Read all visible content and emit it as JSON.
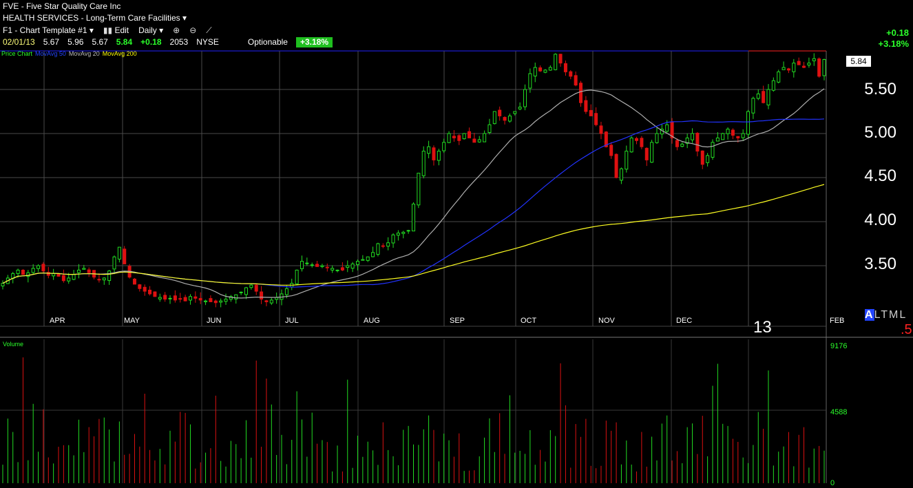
{
  "header": {
    "ticker": "FVE",
    "company": "Five Star Quality Care Inc",
    "sector": "HEALTH SERVICES - Long-Term Care Facilities",
    "template": "F1 - Chart Template #1",
    "edit": "Edit",
    "period": "Daily",
    "quote": {
      "date": "02/01/13",
      "open": "5.67",
      "high": "5.96",
      "low": "5.67",
      "last": "5.84",
      "change": "+0.18",
      "volume": "2053",
      "exchange": "NYSE",
      "optionable": "Optionable",
      "pct": "+3.18%"
    },
    "right_change": "+0.18",
    "right_pct": "+3.18%"
  },
  "legend": {
    "price": "Price Chart",
    "ma50": "MovAvg 50",
    "ma20": "MovAvg 20",
    "ma200": "MovAvg 200"
  },
  "axis": {
    "prices": [
      "5.50",
      "5.00",
      "4.50",
      "4.00",
      "3.50"
    ],
    "last_tag": "5.84",
    "months": [
      "APR",
      "MAY",
      "JUN",
      "JUL",
      "AUG",
      "SEP",
      "OCT",
      "NOV",
      "DEC",
      "FEB"
    ],
    "year": "13",
    "altml": "ALTML",
    "altml_suffix": ".5"
  },
  "volume": {
    "label": "Volume",
    "ticks": [
      "9176",
      "4588",
      "0"
    ]
  },
  "colors": {
    "up": "#22dd22",
    "down": "#dd1111",
    "ma20": "#b0b0b0",
    "ma50": "#2233ff",
    "ma200": "#ffff22"
  },
  "chart_data": {
    "type": "candlestick",
    "price_axis_ticks": [
      3.5,
      4.0,
      4.5,
      5.0,
      5.5
    ],
    "volume_axis_ticks": [
      0,
      4588,
      9176
    ],
    "price_series": [
      3.3,
      3.36,
      3.41,
      3.45,
      3.4,
      3.42,
      3.47,
      3.5,
      3.44,
      3.39,
      3.41,
      3.38,
      3.33,
      3.36,
      3.4,
      3.45,
      3.47,
      3.42,
      3.37,
      3.34,
      3.36,
      3.44,
      3.6,
      3.71,
      3.52,
      3.37,
      3.29,
      3.24,
      3.21,
      3.18,
      3.15,
      3.14,
      3.12,
      3.13,
      3.11,
      3.12,
      3.1,
      3.15,
      3.13,
      3.11,
      3.1,
      3.09,
      3.08,
      3.1,
      3.12,
      3.15,
      3.17,
      3.2,
      3.25,
      3.28,
      3.21,
      3.12,
      3.09,
      3.11,
      3.14,
      3.18,
      3.24,
      3.3,
      3.45,
      3.55,
      3.53,
      3.51,
      3.49,
      3.5,
      3.48,
      3.47,
      3.45,
      3.45,
      3.5,
      3.52,
      3.55,
      3.57,
      3.6,
      3.65,
      3.75,
      3.72,
      3.76,
      3.85,
      3.87,
      3.88,
      3.9,
      4.2,
      4.55,
      4.8,
      4.85,
      4.7,
      4.8,
      4.9,
      5.0,
      4.95,
      4.92,
      5.0,
      4.95,
      4.9,
      4.93,
      5.0,
      5.1,
      5.25,
      5.2,
      5.15,
      5.2,
      5.25,
      5.3,
      5.5,
      5.68,
      5.75,
      5.71,
      5.72,
      5.75,
      5.9,
      5.8,
      5.7,
      5.65,
      5.55,
      5.35,
      5.25,
      5.2,
      5.1,
      5.0,
      4.85,
      4.75,
      4.5,
      4.6,
      4.8,
      4.95,
      4.92,
      4.85,
      4.7,
      4.9,
      5.0,
      5.05,
      5.1,
      4.95,
      4.85,
      4.88,
      4.95,
      5.0,
      4.8,
      4.65,
      4.75,
      4.9,
      4.95,
      5.0,
      5.05,
      4.98,
      4.95,
      5.0,
      5.25,
      5.4,
      5.45,
      5.35,
      5.5,
      5.6,
      5.7,
      5.75,
      5.72,
      5.8,
      5.78,
      5.75,
      5.8,
      5.85,
      5.65,
      5.84
    ]
  }
}
